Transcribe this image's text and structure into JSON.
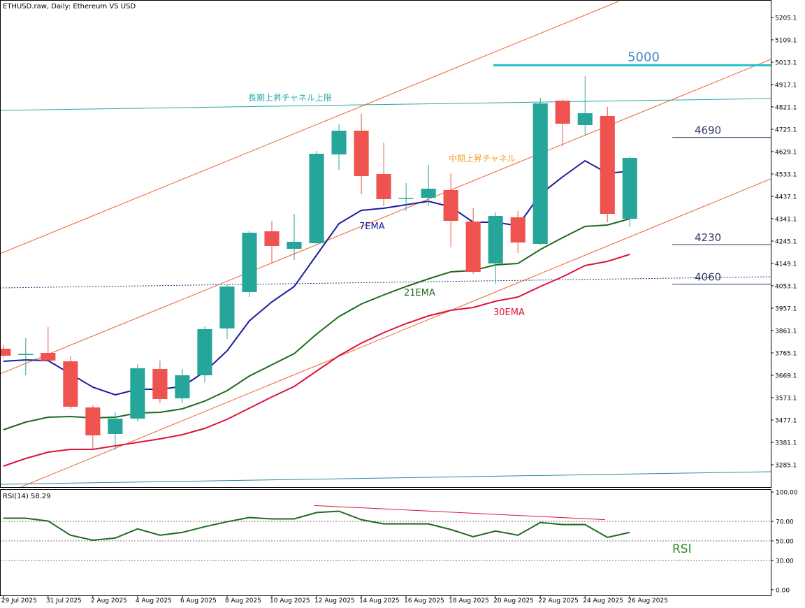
{
  "chart_data": [
    {
      "type": "candlestick",
      "title": "ETHUSD.raw, Daily:  Ethereum VS USD",
      "categories": [
        "29 Jul 2025",
        null,
        "31 Jul 2025",
        null,
        "2 Aug 2025",
        null,
        "4 Aug 2025",
        null,
        "6 Aug 2025",
        null,
        "8 Aug 2025",
        null,
        "10 Aug 2025",
        null,
        "12 Aug 2025",
        null,
        "14 Aug 2025",
        null,
        "16 Aug 2025",
        null,
        "18 Aug 2025",
        null,
        "20 Aug 2025",
        null,
        "22 Aug 2025",
        null,
        "24 Aug 2025",
        null,
        "26 Aug 2025"
      ],
      "open": [
        3783,
        3756,
        3765,
        3729,
        3531,
        3417,
        3483,
        3696,
        3570,
        3669,
        3870,
        4026,
        4287,
        4212,
        4236,
        4617,
        4719,
        4533,
        4428,
        4431,
        4464,
        4329,
        4149,
        4347,
        4233,
        4848,
        4743,
        4782,
        4341
      ],
      "high": [
        3800,
        3828,
        3876,
        3750,
        3540,
        3510,
        3717,
        3732,
        3696,
        3879,
        4056,
        4290,
        4332,
        4362,
        4632,
        4746,
        4791,
        4668,
        4494,
        4572,
        4536,
        4386,
        4368,
        4374,
        4860,
        4854,
        4953,
        4821,
        4608
      ],
      "low": [
        3745,
        3669,
        3726,
        3525,
        3354,
        3348,
        3471,
        3549,
        3549,
        3639,
        3825,
        4005,
        4152,
        4164,
        4230,
        4551,
        4446,
        4395,
        4374,
        4395,
        4218,
        4104,
        4062,
        4194,
        4230,
        4653,
        4698,
        4326,
        4305
      ],
      "close": [
        3753,
        3761,
        3732,
        3534,
        3411,
        3483,
        3699,
        3567,
        3669,
        3867,
        4050,
        4281,
        4224,
        4242,
        4620,
        4719,
        4524,
        4425,
        4431,
        4470,
        4332,
        4113,
        4353,
        4239,
        4836,
        4749,
        4794,
        4362,
        4602
      ],
      "up_color": "#26a69a",
      "down_color": "#ef5350",
      "series": [
        {
          "name": "7EMA",
          "color": "#1c1c9c",
          "values": [
            3729,
            3735,
            3732,
            3675,
            3618,
            3585,
            3609,
            3609,
            3621,
            3684,
            3774,
            3903,
            3984,
            4050,
            4185,
            4320,
            4377,
            4386,
            4401,
            4416,
            4392,
            4326,
            4326,
            4311,
            4446,
            4521,
            4590,
            4536,
            4545
          ]
        },
        {
          "name": "21EMA",
          "color": "#1e6b1e",
          "values": [
            3435,
            3468,
            3489,
            3492,
            3486,
            3489,
            3507,
            3510,
            3525,
            3558,
            3603,
            3666,
            3714,
            3762,
            3846,
            3921,
            3975,
            4014,
            4050,
            4083,
            4113,
            4119,
            4143,
            4149,
            4209,
            4260,
            4308,
            4314,
            4341
          ]
        },
        {
          "name": "30EMA",
          "color": "#dc143c",
          "values": [
            3279,
            3312,
            3339,
            3351,
            3351,
            3366,
            3381,
            3396,
            3414,
            3441,
            3480,
            3528,
            3576,
            3621,
            3687,
            3753,
            3807,
            3852,
            3891,
            3924,
            3948,
            3960,
            3987,
            4005,
            4050,
            4092,
            4140,
            4158,
            4188
          ]
        }
      ],
      "xlim": [
        -0.15,
        34.3
      ],
      "ylim": [
        3189,
        5280
      ],
      "yticks": [
        5205.1,
        5109.1,
        5013.1,
        4917.1,
        4821.1,
        4725.1,
        4629.1,
        4533.1,
        4437.1,
        4341.1,
        4245.1,
        4149.1,
        4053.1,
        3957.1,
        3861.1,
        3765.1,
        3669.1,
        3573.1,
        3477.1,
        3381.1,
        3285.1
      ],
      "trendlines": [
        {
          "color": "#e8642a",
          "x": [
            -0.15,
            27.5
          ],
          "y": [
            4191,
            5274
          ]
        },
        {
          "name": "中期上昇チャネル",
          "color": "#e8642a",
          "x": [
            -0.15,
            34.3
          ],
          "y": [
            3675,
            5025
          ]
        },
        {
          "color": "#e8642a",
          "x": [
            0.78,
            34.3
          ],
          "y": [
            3189,
            4512
          ]
        },
        {
          "name": "長期上昇チャネル上限",
          "color": "#2aa8a8",
          "x": [
            -0.15,
            34.3
          ],
          "y": [
            4806,
            4857
          ]
        },
        {
          "color": "#2a8aa0",
          "x": [
            -0.15,
            34.3
          ],
          "y": [
            3201,
            3255
          ]
        },
        {
          "color": "#2a3a7a",
          "dashed": true,
          "x": [
            -0.15,
            34.3
          ],
          "y": [
            4044,
            4092
          ]
        }
      ],
      "levels": [
        {
          "value": 5000,
          "color": "#22c1c9",
          "start": 21.9
        },
        {
          "value": 4690,
          "color": "#333a66",
          "start": 29.9
        },
        {
          "value": 4230,
          "color": "#333a66",
          "start": 29.9
        },
        {
          "value": 4060,
          "color": "#333a66",
          "start": 29.9
        }
      ]
    },
    {
      "type": "line",
      "title": "RSI(14) 58.29",
      "values": [
        73.2,
        73.2,
        70.3,
        55.8,
        50.7,
        52.9,
        62.3,
        55.8,
        58.7,
        64.5,
        69.6,
        73.9,
        72.5,
        72.5,
        79.0,
        80.4,
        71.7,
        67.4,
        67.4,
        67.4,
        61.6,
        54.3,
        60.1,
        55.8,
        68.8,
        66.7,
        66.7,
        53.6,
        58.7
      ],
      "color": "#1e6b1e",
      "ylim": [
        -5.8,
        102.9
      ],
      "yticks": [
        {
          "value": 100,
          "label": "100.00"
        },
        {
          "value": 70,
          "label": "70.00"
        },
        {
          "value": 50,
          "label": "50.00"
        },
        {
          "value": 30,
          "label": "30.00"
        },
        {
          "value": 0,
          "label": "0.00"
        }
      ],
      "levels": [
        70,
        50,
        30
      ],
      "trendlines": [
        {
          "color": "#dc143c",
          "x": [
            13.9,
            26.9
          ],
          "y": [
            86.2,
            71.7
          ]
        }
      ],
      "annotations": [
        {
          "text": "RSI",
          "color": "#2e8b2e"
        }
      ]
    }
  ]
}
